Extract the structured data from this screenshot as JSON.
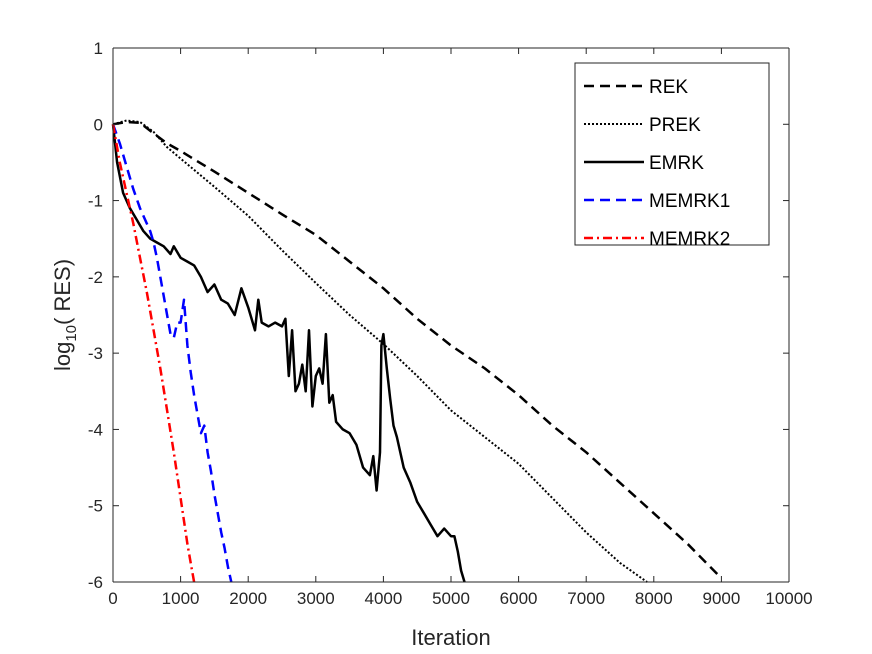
{
  "chart_data": {
    "type": "line",
    "title": "",
    "xlabel": "Iteration",
    "ylabel_main": "log",
    "ylabel_sub": "10",
    "ylabel_rest": "( RES)",
    "xlim": [
      0,
      10000
    ],
    "ylim": [
      -6,
      1
    ],
    "xticks": [
      0,
      1000,
      2000,
      3000,
      4000,
      5000,
      6000,
      7000,
      8000,
      9000,
      10000
    ],
    "xtick_labels": [
      "0",
      "1000",
      "2000",
      "3000",
      "4000",
      "5000",
      "6000",
      "7000",
      "8000",
      "9000",
      "10000"
    ],
    "yticks": [
      1,
      0,
      -1,
      -2,
      -3,
      -4,
      -5,
      -6
    ],
    "ytick_labels": [
      "1",
      "0",
      "-1",
      "-2",
      "-3",
      "-4",
      "-5",
      "-6"
    ],
    "grid": false,
    "legend_position": "top-right",
    "series": [
      {
        "name": "REK",
        "color": "#000000",
        "style": "dashed",
        "x": [
          0,
          200,
          400,
          600,
          800,
          1000,
          1500,
          2000,
          2500,
          3000,
          3500,
          4000,
          4500,
          5000,
          5500,
          6000,
          6500,
          7000,
          7500,
          8000,
          8500,
          9000
        ],
        "y": [
          0,
          0.03,
          0.02,
          -0.12,
          -0.25,
          -0.35,
          -0.62,
          -0.9,
          -1.18,
          -1.45,
          -1.8,
          -2.15,
          -2.55,
          -2.9,
          -3.2,
          -3.55,
          -3.95,
          -4.3,
          -4.7,
          -5.1,
          -5.5,
          -5.95
        ]
      },
      {
        "name": "PREK",
        "color": "#000000",
        "style": "dotted",
        "x": [
          0,
          200,
          400,
          600,
          800,
          1000,
          1500,
          2000,
          2500,
          3000,
          3500,
          4000,
          4500,
          5000,
          5500,
          6000,
          6500,
          7000,
          7500,
          7900
        ],
        "y": [
          0,
          0.05,
          0.03,
          -0.1,
          -0.3,
          -0.45,
          -0.82,
          -1.2,
          -1.65,
          -2.08,
          -2.5,
          -2.88,
          -3.3,
          -3.75,
          -4.1,
          -4.45,
          -4.9,
          -5.35,
          -5.75,
          -6
        ]
      },
      {
        "name": "EMRK",
        "color": "#000000",
        "style": "solid",
        "x": [
          0,
          60,
          150,
          250,
          350,
          450,
          550,
          650,
          750,
          850,
          900,
          1000,
          1100,
          1200,
          1300,
          1400,
          1500,
          1600,
          1700,
          1800,
          1900,
          2000,
          2100,
          2150,
          2200,
          2300,
          2400,
          2500,
          2550,
          2600,
          2650,
          2700,
          2750,
          2800,
          2850,
          2900,
          2950,
          3000,
          3050,
          3100,
          3150,
          3200,
          3250,
          3300,
          3400,
          3500,
          3600,
          3700,
          3800,
          3850,
          3900,
          3950,
          3970,
          4000,
          4050,
          4100,
          4150,
          4200,
          4300,
          4400,
          4500,
          4600,
          4700,
          4800,
          4900,
          5000,
          5050,
          5100,
          5150,
          5200
        ],
        "y": [
          0,
          -0.5,
          -0.9,
          -1.1,
          -1.25,
          -1.4,
          -1.5,
          -1.55,
          -1.6,
          -1.7,
          -1.6,
          -1.75,
          -1.8,
          -1.85,
          -2.0,
          -2.2,
          -2.1,
          -2.3,
          -2.35,
          -2.5,
          -2.15,
          -2.4,
          -2.7,
          -2.3,
          -2.6,
          -2.65,
          -2.6,
          -2.65,
          -2.55,
          -3.3,
          -2.7,
          -3.5,
          -3.4,
          -3.15,
          -3.5,
          -2.7,
          -3.7,
          -3.3,
          -3.2,
          -3.4,
          -2.75,
          -3.65,
          -3.55,
          -3.9,
          -4.0,
          -4.05,
          -4.2,
          -4.5,
          -4.6,
          -4.35,
          -4.8,
          -4.3,
          -2.9,
          -2.75,
          -3.2,
          -3.6,
          -3.95,
          -4.1,
          -4.5,
          -4.7,
          -4.95,
          -5.1,
          -5.25,
          -5.4,
          -5.3,
          -5.4,
          -5.4,
          -5.6,
          -5.85,
          -6
        ]
      },
      {
        "name": "MEMRK1",
        "color": "#0000FF",
        "style": "dashed",
        "x": [
          0,
          100,
          200,
          300,
          400,
          500,
          550,
          600,
          650,
          700,
          750,
          800,
          850,
          900,
          950,
          1000,
          1050,
          1100,
          1150,
          1200,
          1250,
          1300,
          1350,
          1400,
          1450,
          1500,
          1550,
          1600,
          1650,
          1700,
          1750
        ],
        "y": [
          0,
          -0.25,
          -0.55,
          -0.85,
          -1.1,
          -1.3,
          -1.4,
          -1.55,
          -1.75,
          -2.0,
          -2.25,
          -2.5,
          -2.75,
          -2.8,
          -2.6,
          -2.6,
          -2.3,
          -2.9,
          -3.25,
          -3.55,
          -3.8,
          -4.05,
          -3.95,
          -4.3,
          -4.55,
          -4.85,
          -5.1,
          -5.35,
          -5.55,
          -5.8,
          -6
        ]
      },
      {
        "name": "MEMRK2",
        "color": "#FF0000",
        "style": "dashdot",
        "x": [
          0,
          100,
          200,
          300,
          400,
          500,
          600,
          700,
          800,
          900,
          1000,
          1100,
          1150,
          1200
        ],
        "y": [
          0,
          -0.5,
          -0.9,
          -1.3,
          -1.75,
          -2.2,
          -2.7,
          -3.2,
          -3.75,
          -4.3,
          -4.9,
          -5.5,
          -5.75,
          -6
        ]
      }
    ]
  }
}
